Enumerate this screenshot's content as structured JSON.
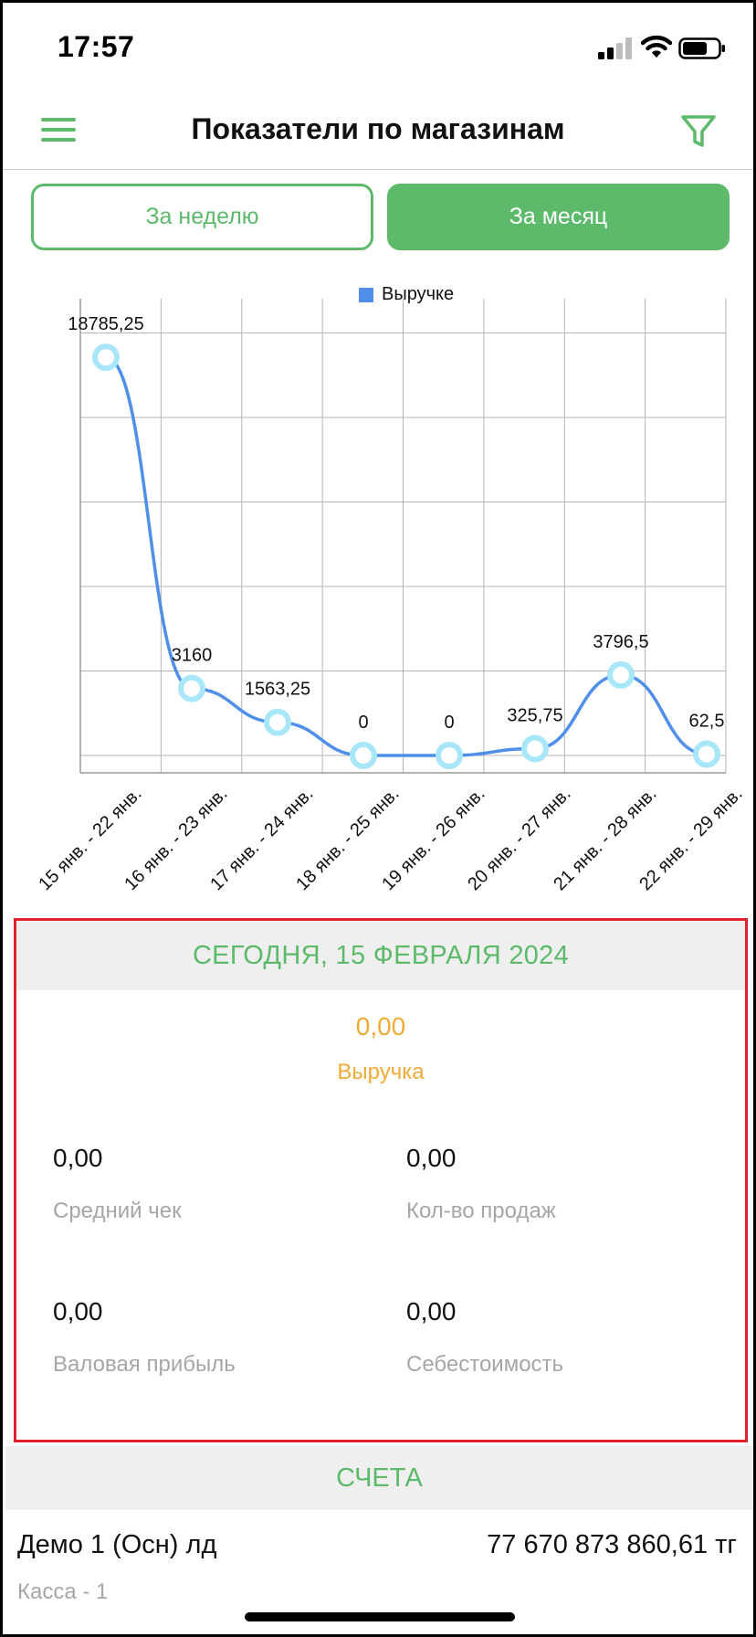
{
  "status_bar": {
    "time": "17:57"
  },
  "header": {
    "title": "Показатели по магазинам",
    "menu_icon": "hamburger-icon",
    "filter_icon": "filter-icon"
  },
  "period_tabs": [
    {
      "label": "За неделю",
      "selected": false
    },
    {
      "label": "За месяц",
      "selected": true
    }
  ],
  "colors": {
    "accent": "#5cba6a",
    "revenue": "#f0ab36",
    "series": "#4f8fea",
    "point": "#a8e6f9",
    "highlight": "#e0222f"
  },
  "chart_data": {
    "type": "line",
    "legend": "Выручке",
    "legend_position": "top-center",
    "categories": [
      "15 янв. - 22 янв.",
      "16 янв. - 23 янв.",
      "17 янв. - 24 янв.",
      "18 янв. - 25 янв.",
      "19 янв. - 26 янв.",
      "20 янв. - 27 янв.",
      "21 янв. - 28 янв.",
      "22 янв. - 29 янв."
    ],
    "values": [
      18785.25,
      3160,
      1563.25,
      0,
      0,
      325.75,
      3796.5,
      62.5
    ],
    "value_labels": [
      "18785,25",
      "3160",
      "1563,25",
      "0",
      "0",
      "325,75",
      "3796,5",
      "62,5"
    ],
    "ylim": [
      0,
      20000
    ],
    "grid": true
  },
  "today": {
    "title": "СЕГОДНЯ,  15 ФЕВРАЛЯ 2024",
    "revenue_value": "0,00",
    "revenue_label": "Выручка",
    "metrics": [
      {
        "value": "0,00",
        "label": "Средний чек"
      },
      {
        "value": "0,00",
        "label": "Кол-во продаж"
      },
      {
        "value": "0,00",
        "label": "Валовая прибыль"
      },
      {
        "value": "0,00",
        "label": "Себестоимость"
      }
    ]
  },
  "accounts": {
    "title": "СЧЕТА",
    "items": [
      {
        "name": "Демо 1 (Осн) лд",
        "amount": "77 670 873 860,61 тг",
        "sub": "Касса - 1"
      }
    ]
  }
}
